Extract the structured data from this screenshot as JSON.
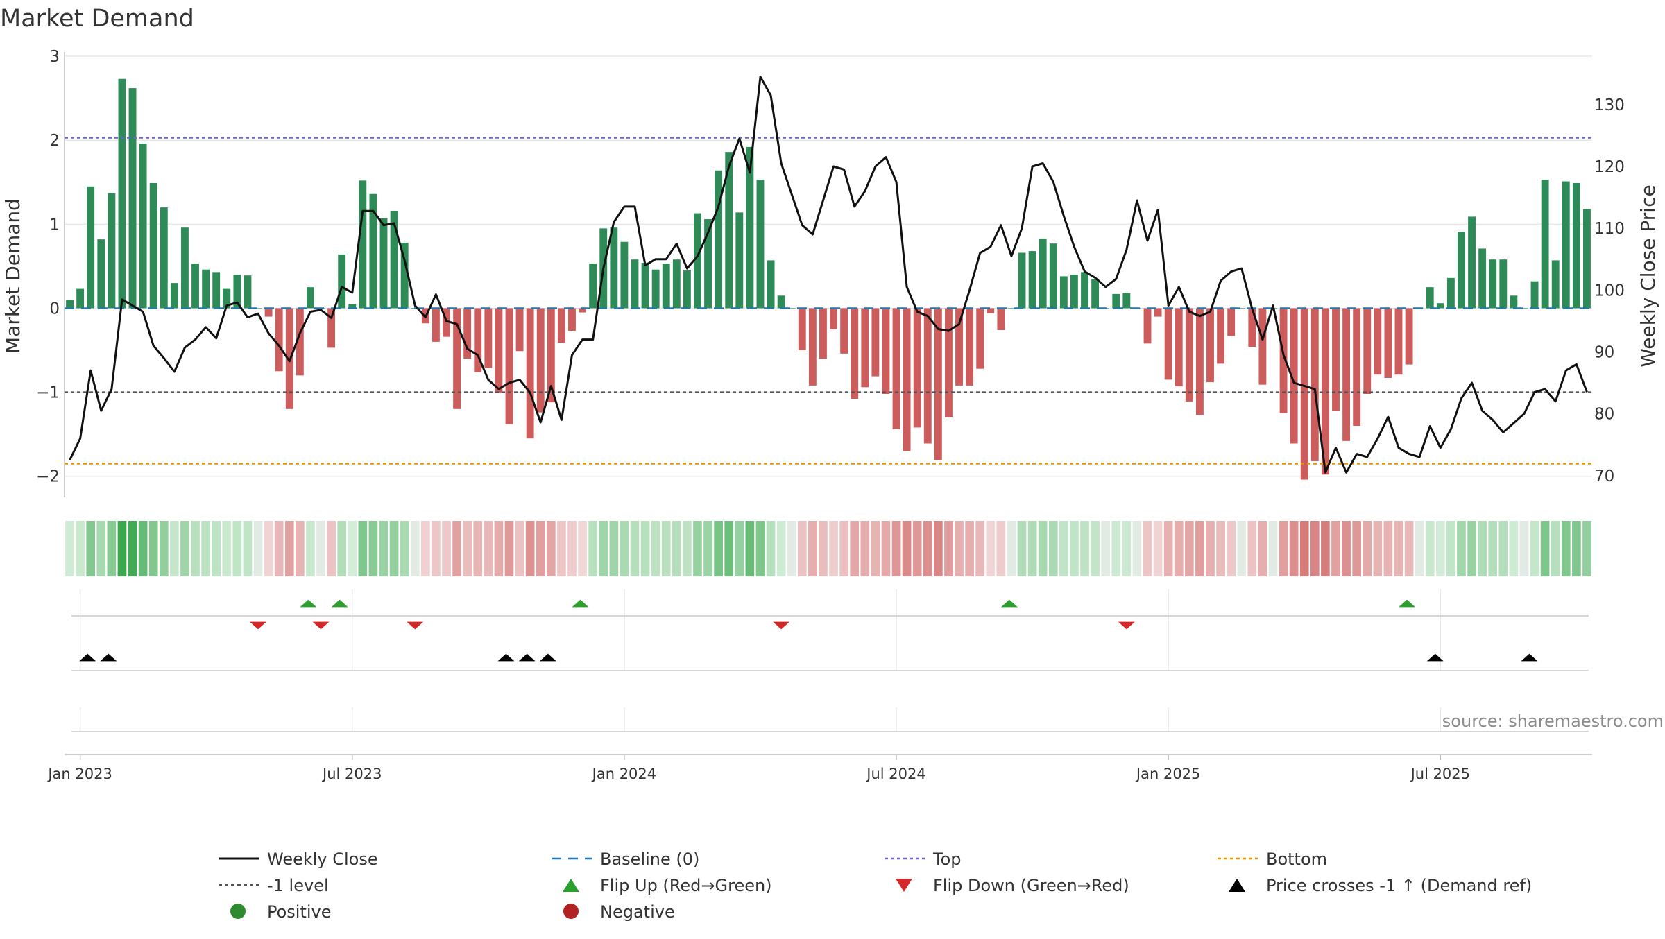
{
  "chart_data": {
    "type": "bar",
    "title": "Market Demand",
    "ylabel_left": "Market Demand",
    "ylabel_right": "Weekly Close Price",
    "ylim_left": [
      -2.25,
      3.05
    ],
    "ylim_right": [
      66.5,
      138.5
    ],
    "yticks_left": [
      -2,
      -1,
      0,
      1,
      2,
      3
    ],
    "yticks_right": [
      70,
      80,
      90,
      100,
      110,
      120,
      130
    ],
    "xticks": [
      "Jan 2023",
      "Jul 2023",
      "Jan 2024",
      "Jul 2024",
      "Jan 2025",
      "Jul 2025"
    ],
    "xtick_weeks": [
      1.5,
      27.5,
      53.5,
      79.5,
      105.5,
      131.5
    ],
    "source_text": "source: sharemaestro.com",
    "levels": {
      "top": 2.03,
      "minus_one": -1.0,
      "bottom": -1.85,
      "baseline": 0
    },
    "demand": [
      0.1,
      0.23,
      1.45,
      0.82,
      1.37,
      2.73,
      2.62,
      1.96,
      1.49,
      1.2,
      0.3,
      0.96,
      0.53,
      0.46,
      0.43,
      0.23,
      0.4,
      0.39,
      0,
      -0.1,
      -0.75,
      -1.2,
      -0.8,
      0.25,
      0,
      -0.47,
      0.64,
      0.05,
      1.52,
      1.36,
      1.07,
      1.16,
      0.78,
      0,
      -0.18,
      -0.4,
      -0.34,
      -1.2,
      -0.6,
      -0.76,
      -0.71,
      -1.01,
      -1.38,
      -0.51,
      -1.55,
      -1.24,
      -1.12,
      -0.41,
      -0.27,
      -0.05,
      0.53,
      0.95,
      0.96,
      0.79,
      0.58,
      0.54,
      0.46,
      0.53,
      0.58,
      0.45,
      1.13,
      1.06,
      1.64,
      1.86,
      1.14,
      1.92,
      1.53,
      0.57,
      0.15,
      0,
      -0.5,
      -0.92,
      -0.6,
      -0.25,
      -0.54,
      -1.08,
      -0.94,
      -0.81,
      -1.02,
      -1.44,
      -1.7,
      -1.42,
      -1.61,
      -1.81,
      -1.3,
      -0.92,
      -0.92,
      -0.72,
      -0.06,
      -0.26,
      0,
      0.66,
      0.68,
      0.83,
      0.77,
      0.38,
      0.4,
      0.43,
      0.35,
      0,
      0.17,
      0.18,
      0,
      -0.42,
      -0.1,
      -0.85,
      -0.93,
      -1.11,
      -1.27,
      -0.88,
      -0.66,
      -0.33,
      0,
      -0.46,
      -0.91,
      0,
      -1.25,
      -1.61,
      -2.04,
      -1.82,
      -1.98,
      -1.22,
      -1.58,
      -1.4,
      -1.02,
      -0.79,
      -0.83,
      -0.79,
      -0.67,
      0,
      0.25,
      0.06,
      0.36,
      0.91,
      1.09,
      0.71,
      0.58,
      0.58,
      0.15,
      0,
      0.32,
      1.53,
      0.57,
      1.51,
      1.49,
      1.18
    ],
    "weekly_close": [
      72.5,
      76,
      87,
      80.5,
      84,
      98.5,
      97.5,
      96.5,
      91,
      89,
      86.8,
      90.7,
      92,
      94,
      92.2,
      97.5,
      98,
      95.6,
      96.2,
      93,
      91,
      88.5,
      93,
      96.5,
      96.8,
      95.5,
      100.5,
      99.6,
      112.8,
      112.8,
      110.5,
      110.8,
      104.8,
      97.5,
      95.6,
      99.3,
      95,
      94.5,
      90.5,
      89.5,
      85.5,
      84,
      85,
      85.5,
      83.4,
      78.6,
      84.5,
      79,
      89.5,
      92,
      92,
      103.5,
      111,
      113.5,
      113.5,
      104,
      105,
      105,
      107.5,
      103.5,
      105.5,
      109.3,
      113.5,
      120,
      124.5,
      119,
      134.5,
      131.5,
      120.5,
      115.5,
      110.5,
      109,
      114.5,
      120,
      119.5,
      113.5,
      116,
      120,
      121.5,
      117.5,
      100.5,
      96.5,
      95.8,
      93.7,
      93.4,
      94.5,
      100,
      106,
      107,
      110.5,
      105.5,
      110,
      120,
      120.5,
      117.5,
      112,
      107,
      103,
      102,
      100.5,
      101.8,
      106.5,
      114.5,
      108,
      113,
      97.5,
      100.5,
      96.5,
      95.8,
      96.5,
      101.5,
      103,
      103.5,
      97,
      92,
      97.5,
      89.5,
      85,
      84.5,
      84,
      70.5,
      74.5,
      70.5,
      73.5,
      73,
      76,
      79.5,
      74.5,
      73.5,
      73,
      78,
      74.5,
      77.5,
      82.5,
      85,
      80.5,
      79,
      77,
      78.5,
      80,
      83.5,
      84,
      82,
      87,
      88,
      83.5
    ],
    "flip_up_weeks": [
      23.3,
      26.3,
      49.3,
      90.3,
      128.3
    ],
    "flip_down_weeks": [
      18.5,
      24.5,
      33.5,
      68.5,
      101.5
    ],
    "price_cross_weeks": [
      2.2,
      4.2,
      42.2,
      44.2,
      46.2,
      131,
      140
    ],
    "legend": [
      {
        "label": "Weekly Close",
        "symbol": "line",
        "color": "#111111"
      },
      {
        "label": "Baseline (0)",
        "symbol": "dash",
        "color": "#1f77b4"
      },
      {
        "label": "Top",
        "symbol": "dot",
        "color": "#6666cc"
      },
      {
        "label": "Bottom",
        "symbol": "dot",
        "color": "#e69500"
      },
      {
        "label": "-1 level",
        "symbol": "dot",
        "color": "#555555"
      },
      {
        "label": "Flip Up (Red→Green)",
        "symbol": "tri-up",
        "color": "#2ca02c"
      },
      {
        "label": "Flip Down (Green→Red)",
        "symbol": "tri-down",
        "color": "#d62728"
      },
      {
        "label": "Price crosses -1 ↑ (Demand ref)",
        "symbol": "tri-up",
        "color": "#000000"
      },
      {
        "label": "Positive",
        "symbol": "circle",
        "color": "#2e8b2e"
      },
      {
        "label": "Negative",
        "symbol": "circle",
        "color": "#b22222"
      }
    ],
    "colors": {
      "positive_bar": "#2e8b57",
      "negative_bar": "#cd5c5c",
      "close_line": "#111111",
      "baseline": "#1f77b4",
      "top": "#6666cc",
      "minus_one": "#555555",
      "bottom": "#e69500",
      "flip_up": "#2ca02c",
      "flip_down": "#d62728",
      "price_cross": "#000000",
      "grid": "#e8e8e8",
      "axis": "#bbbbbb",
      "text": "#333333",
      "source": "#8c8c8c"
    }
  }
}
